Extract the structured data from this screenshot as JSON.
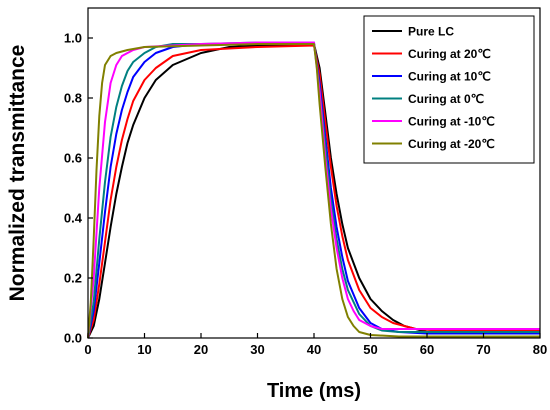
{
  "chart_data": {
    "type": "line",
    "title": "",
    "xlabel": "Time (ms)",
    "ylabel": "Normalized transmittance",
    "xlim": [
      0,
      80
    ],
    "ylim": [
      0,
      1.1
    ],
    "xticks": [
      0,
      10,
      20,
      30,
      40,
      50,
      60,
      70,
      80
    ],
    "yticks": [
      0.0,
      0.2,
      0.4,
      0.6,
      0.8,
      1.0
    ],
    "grid": false,
    "legend_position": "top-right",
    "series": [
      {
        "name": "Pure LC",
        "color": "#000000",
        "points": [
          [
            0,
            0
          ],
          [
            1,
            0.04
          ],
          [
            2,
            0.13
          ],
          [
            3,
            0.25
          ],
          [
            4,
            0.37
          ],
          [
            5,
            0.48
          ],
          [
            6,
            0.57
          ],
          [
            7,
            0.65
          ],
          [
            8,
            0.71
          ],
          [
            10,
            0.8
          ],
          [
            12,
            0.86
          ],
          [
            15,
            0.91
          ],
          [
            20,
            0.95
          ],
          [
            25,
            0.97
          ],
          [
            30,
            0.975
          ],
          [
            40,
            0.98
          ],
          [
            41,
            0.9
          ],
          [
            42,
            0.75
          ],
          [
            43,
            0.6
          ],
          [
            44,
            0.48
          ],
          [
            45,
            0.38
          ],
          [
            46,
            0.3
          ],
          [
            48,
            0.2
          ],
          [
            50,
            0.13
          ],
          [
            52,
            0.09
          ],
          [
            54,
            0.06
          ],
          [
            56,
            0.04
          ],
          [
            60,
            0.02
          ],
          [
            70,
            0.015
          ],
          [
            80,
            0.015
          ]
        ]
      },
      {
        "name": "Curing at 20℃",
        "color": "#ff0000",
        "points": [
          [
            0,
            0
          ],
          [
            1,
            0.06
          ],
          [
            2,
            0.18
          ],
          [
            3,
            0.32
          ],
          [
            4,
            0.46
          ],
          [
            5,
            0.57
          ],
          [
            6,
            0.66
          ],
          [
            7,
            0.73
          ],
          [
            8,
            0.79
          ],
          [
            10,
            0.86
          ],
          [
            12,
            0.9
          ],
          [
            15,
            0.94
          ],
          [
            20,
            0.96
          ],
          [
            30,
            0.97
          ],
          [
            40,
            0.975
          ],
          [
            41,
            0.88
          ],
          [
            42,
            0.72
          ],
          [
            43,
            0.57
          ],
          [
            44,
            0.44
          ],
          [
            45,
            0.34
          ],
          [
            46,
            0.26
          ],
          [
            48,
            0.16
          ],
          [
            50,
            0.1
          ],
          [
            52,
            0.07
          ],
          [
            54,
            0.05
          ],
          [
            56,
            0.04
          ],
          [
            58,
            0.03
          ],
          [
            62,
            0.025
          ],
          [
            80,
            0.025
          ]
        ]
      },
      {
        "name": "Curing at 10℃",
        "color": "#0000ff",
        "points": [
          [
            0,
            0
          ],
          [
            1,
            0.09
          ],
          [
            2,
            0.25
          ],
          [
            3,
            0.42
          ],
          [
            4,
            0.57
          ],
          [
            5,
            0.68
          ],
          [
            6,
            0.76
          ],
          [
            7,
            0.82
          ],
          [
            8,
            0.87
          ],
          [
            10,
            0.92
          ],
          [
            12,
            0.95
          ],
          [
            15,
            0.97
          ],
          [
            20,
            0.98
          ],
          [
            30,
            0.98
          ],
          [
            40,
            0.98
          ],
          [
            41,
            0.85
          ],
          [
            42,
            0.67
          ],
          [
            43,
            0.5
          ],
          [
            44,
            0.37
          ],
          [
            45,
            0.27
          ],
          [
            46,
            0.19
          ],
          [
            48,
            0.1
          ],
          [
            50,
            0.05
          ],
          [
            52,
            0.03
          ],
          [
            55,
            0.02
          ],
          [
            60,
            0.015
          ],
          [
            80,
            0.015
          ]
        ]
      },
      {
        "name": "Curing at 0℃",
        "color": "#008080",
        "points": [
          [
            0,
            0
          ],
          [
            1,
            0.12
          ],
          [
            2,
            0.33
          ],
          [
            3,
            0.52
          ],
          [
            4,
            0.67
          ],
          [
            5,
            0.77
          ],
          [
            6,
            0.84
          ],
          [
            7,
            0.89
          ],
          [
            8,
            0.92
          ],
          [
            10,
            0.95
          ],
          [
            12,
            0.97
          ],
          [
            15,
            0.98
          ],
          [
            20,
            0.98
          ],
          [
            30,
            0.985
          ],
          [
            40,
            0.985
          ],
          [
            41,
            0.83
          ],
          [
            42,
            0.64
          ],
          [
            43,
            0.46
          ],
          [
            44,
            0.33
          ],
          [
            45,
            0.23
          ],
          [
            46,
            0.16
          ],
          [
            48,
            0.08
          ],
          [
            50,
            0.04
          ],
          [
            52,
            0.025
          ],
          [
            55,
            0.02
          ],
          [
            80,
            0.02
          ]
        ]
      },
      {
        "name": "Curing at -10℃",
        "color": "#ff00ff",
        "points": [
          [
            0,
            0
          ],
          [
            1,
            0.2
          ],
          [
            2,
            0.5
          ],
          [
            3,
            0.72
          ],
          [
            4,
            0.85
          ],
          [
            5,
            0.91
          ],
          [
            6,
            0.94
          ],
          [
            7,
            0.95
          ],
          [
            8,
            0.96
          ],
          [
            10,
            0.97
          ],
          [
            20,
            0.98
          ],
          [
            30,
            0.985
          ],
          [
            40,
            0.985
          ],
          [
            41,
            0.82
          ],
          [
            42,
            0.6
          ],
          [
            43,
            0.43
          ],
          [
            44,
            0.3
          ],
          [
            45,
            0.2
          ],
          [
            46,
            0.13
          ],
          [
            47,
            0.09
          ],
          [
            48,
            0.06
          ],
          [
            50,
            0.04
          ],
          [
            52,
            0.03
          ],
          [
            55,
            0.03
          ],
          [
            80,
            0.03
          ]
        ]
      },
      {
        "name": "Curing at -20℃",
        "color": "#808000",
        "points": [
          [
            0,
            0
          ],
          [
            0.5,
            0.12
          ],
          [
            1,
            0.33
          ],
          [
            1.5,
            0.56
          ],
          [
            2,
            0.74
          ],
          [
            2.5,
            0.85
          ],
          [
            3,
            0.91
          ],
          [
            4,
            0.94
          ],
          [
            5,
            0.95
          ],
          [
            7,
            0.96
          ],
          [
            10,
            0.97
          ],
          [
            20,
            0.975
          ],
          [
            30,
            0.98
          ],
          [
            40,
            0.98
          ],
          [
            40.5,
            0.9
          ],
          [
            41,
            0.78
          ],
          [
            42,
            0.57
          ],
          [
            43,
            0.38
          ],
          [
            44,
            0.23
          ],
          [
            45,
            0.13
          ],
          [
            46,
            0.07
          ],
          [
            47,
            0.04
          ],
          [
            48,
            0.02
          ],
          [
            50,
            0.01
          ],
          [
            55,
            0.005
          ],
          [
            80,
            0.005
          ]
        ]
      }
    ]
  }
}
